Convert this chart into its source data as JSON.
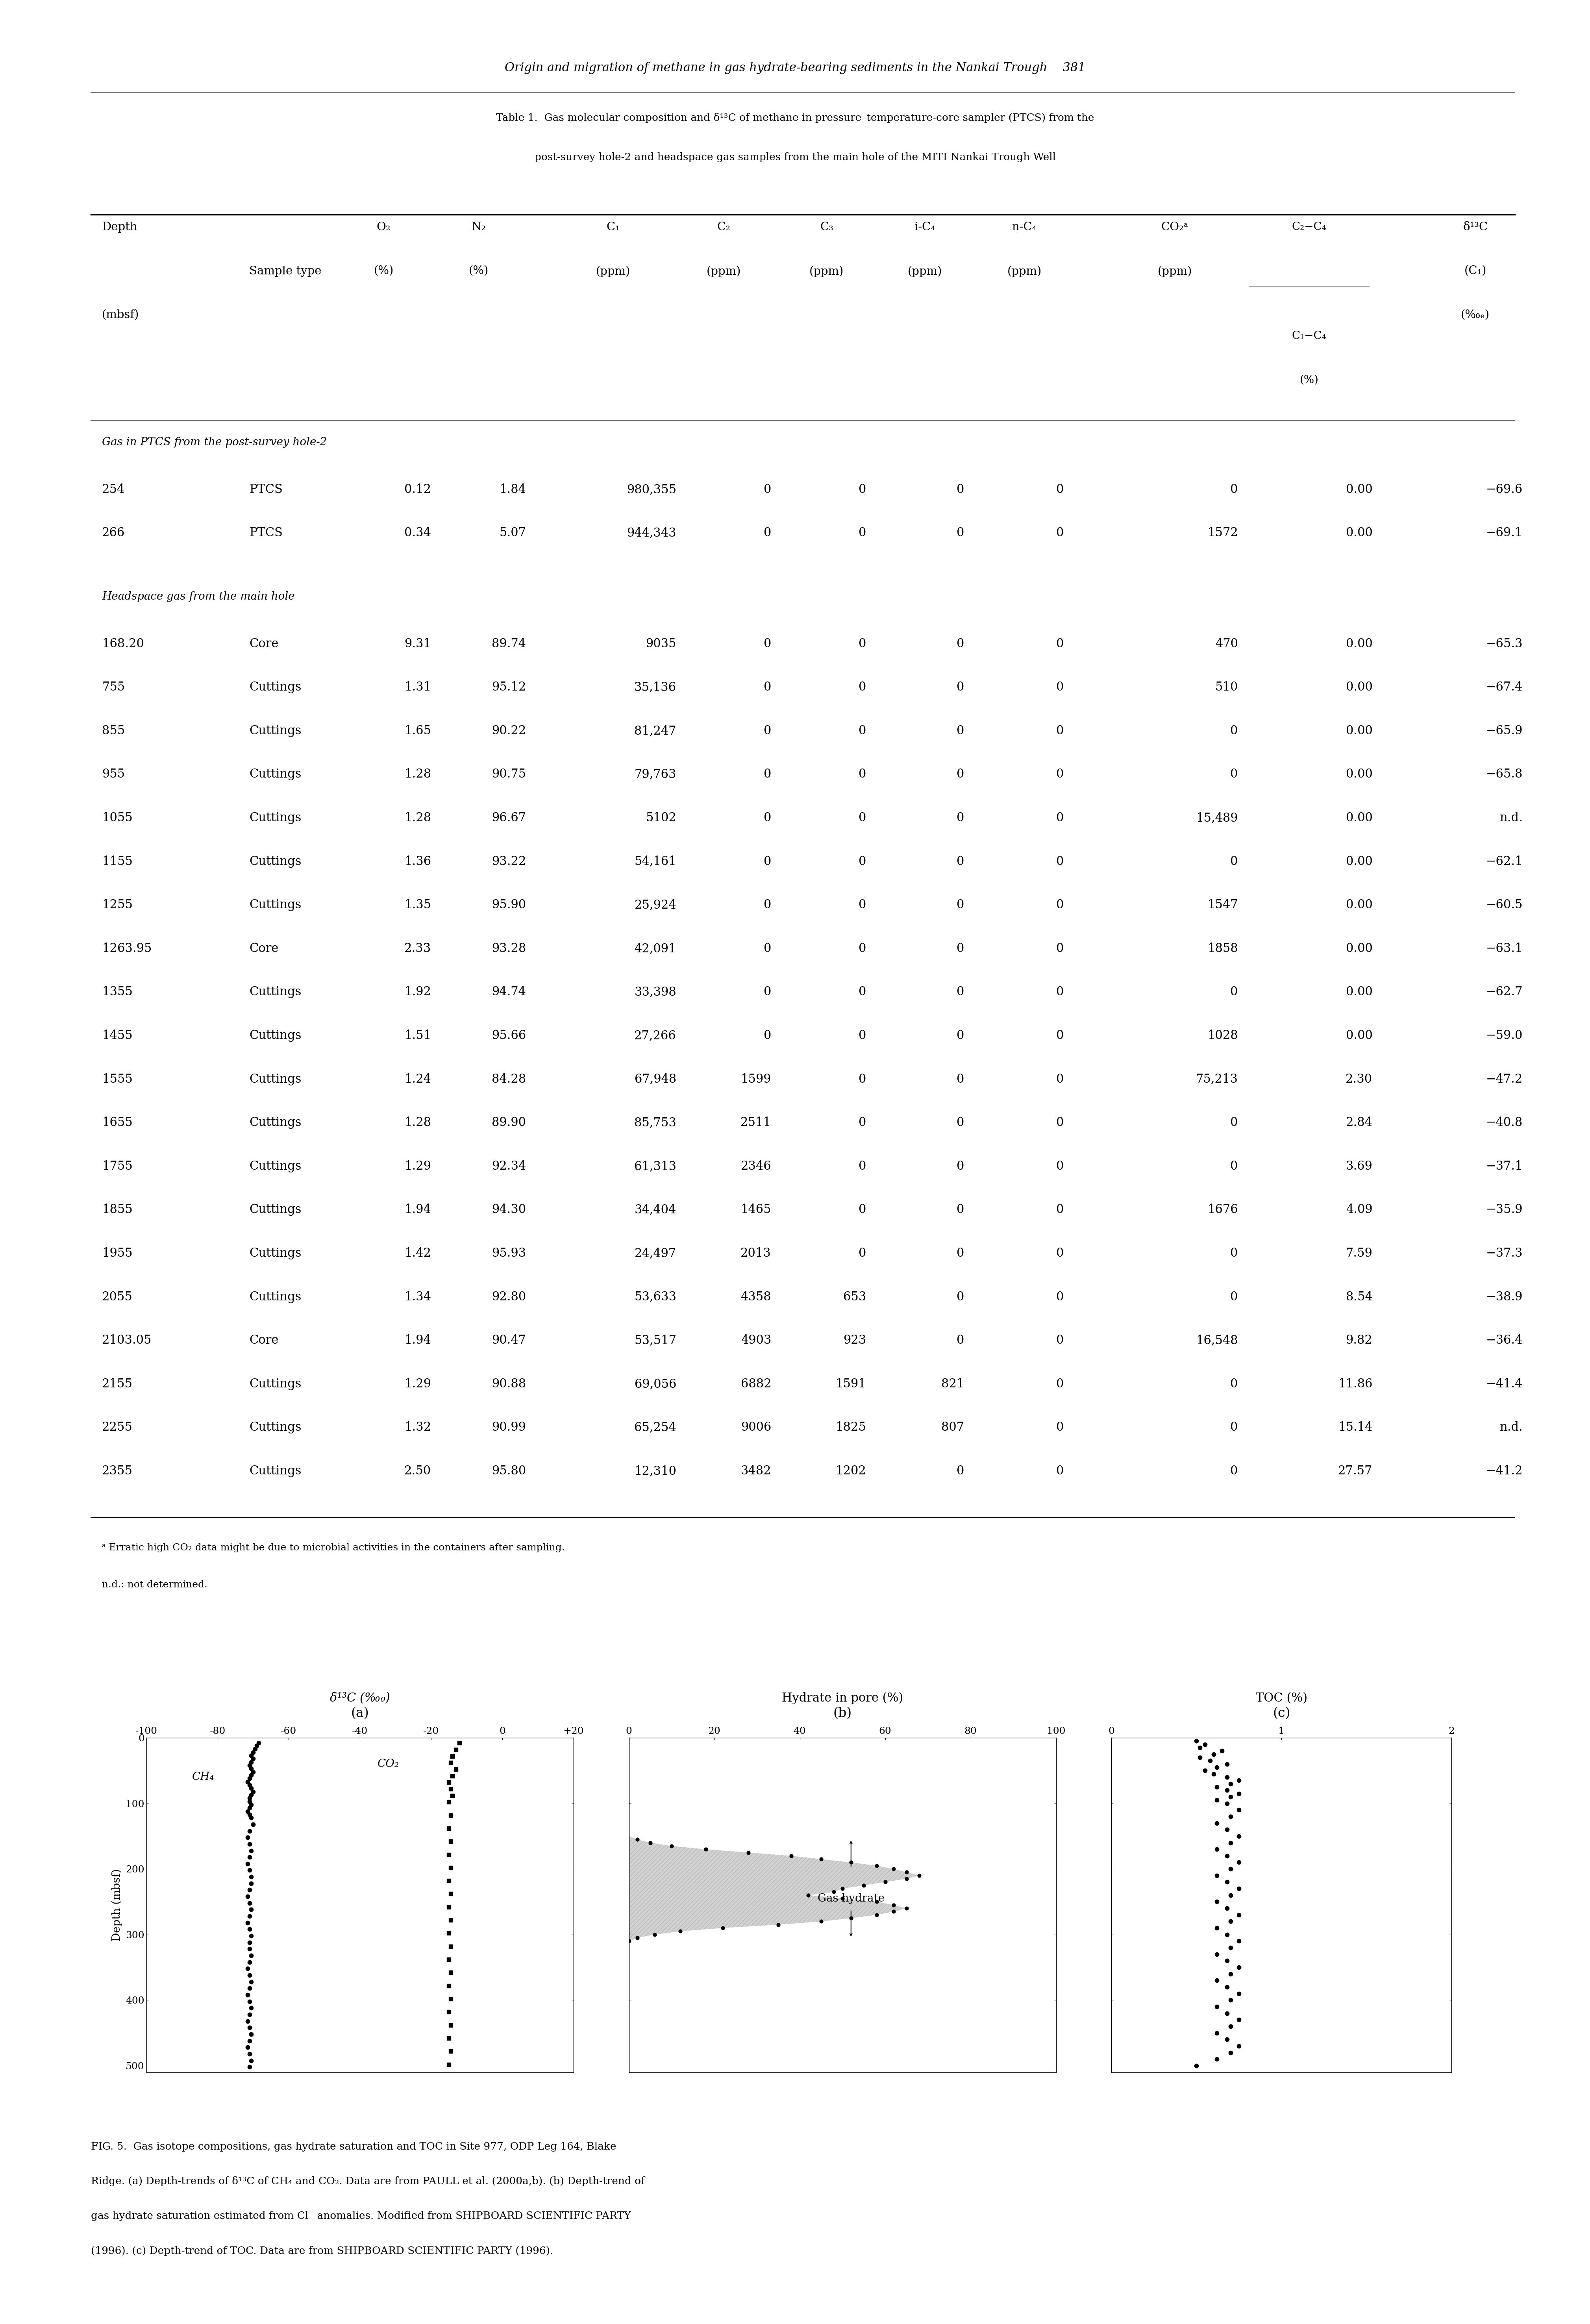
{
  "page_header": "Origin and migration of methane in gas hydrate-bearing sediments in the Nankai Trough",
  "page_number": "381",
  "table_title_line1": "Table 1.  Gas molecular composition and δ¹³C of methane in pressure–temperature-core sampler (PTCS) from the",
  "table_title_line2": "post-survey hole-2 and headspace gas samples from the main hole of the MITI Nankai Trough Well",
  "section1_label": "Gas in PTCS from the post-survey hole-2",
  "section2_label": "Headspace gas from the main hole",
  "rows_ptcs": [
    [
      "254",
      "PTCS",
      "0.12",
      "1.84",
      "980,355",
      "0",
      "0",
      "0",
      "0",
      "0",
      "0.00",
      "−69.6"
    ],
    [
      "266",
      "PTCS",
      "0.34",
      "5.07",
      "944,343",
      "0",
      "0",
      "0",
      "0",
      "1572",
      "0.00",
      "−69.1"
    ]
  ],
  "rows_headspace": [
    [
      "168.20",
      "Core",
      "9.31",
      "89.74",
      "9035",
      "0",
      "0",
      "0",
      "0",
      "470",
      "0.00",
      "−65.3"
    ],
    [
      "755",
      "Cuttings",
      "1.31",
      "95.12",
      "35,136",
      "0",
      "0",
      "0",
      "0",
      "510",
      "0.00",
      "−67.4"
    ],
    [
      "855",
      "Cuttings",
      "1.65",
      "90.22",
      "81,247",
      "0",
      "0",
      "0",
      "0",
      "0",
      "0.00",
      "−65.9"
    ],
    [
      "955",
      "Cuttings",
      "1.28",
      "90.75",
      "79,763",
      "0",
      "0",
      "0",
      "0",
      "0",
      "0.00",
      "−65.8"
    ],
    [
      "1055",
      "Cuttings",
      "1.28",
      "96.67",
      "5102",
      "0",
      "0",
      "0",
      "0",
      "15,489",
      "0.00",
      "n.d."
    ],
    [
      "1155",
      "Cuttings",
      "1.36",
      "93.22",
      "54,161",
      "0",
      "0",
      "0",
      "0",
      "0",
      "0.00",
      "−62.1"
    ],
    [
      "1255",
      "Cuttings",
      "1.35",
      "95.90",
      "25,924",
      "0",
      "0",
      "0",
      "0",
      "1547",
      "0.00",
      "−60.5"
    ],
    [
      "1263.95",
      "Core",
      "2.33",
      "93.28",
      "42,091",
      "0",
      "0",
      "0",
      "0",
      "1858",
      "0.00",
      "−63.1"
    ],
    [
      "1355",
      "Cuttings",
      "1.92",
      "94.74",
      "33,398",
      "0",
      "0",
      "0",
      "0",
      "0",
      "0.00",
      "−62.7"
    ],
    [
      "1455",
      "Cuttings",
      "1.51",
      "95.66",
      "27,266",
      "0",
      "0",
      "0",
      "0",
      "1028",
      "0.00",
      "−59.0"
    ],
    [
      "1555",
      "Cuttings",
      "1.24",
      "84.28",
      "67,948",
      "1599",
      "0",
      "0",
      "0",
      "75,213",
      "2.30",
      "−47.2"
    ],
    [
      "1655",
      "Cuttings",
      "1.28",
      "89.90",
      "85,753",
      "2511",
      "0",
      "0",
      "0",
      "0",
      "2.84",
      "−40.8"
    ],
    [
      "1755",
      "Cuttings",
      "1.29",
      "92.34",
      "61,313",
      "2346",
      "0",
      "0",
      "0",
      "0",
      "3.69",
      "−37.1"
    ],
    [
      "1855",
      "Cuttings",
      "1.94",
      "94.30",
      "34,404",
      "1465",
      "0",
      "0",
      "0",
      "1676",
      "4.09",
      "−35.9"
    ],
    [
      "1955",
      "Cuttings",
      "1.42",
      "95.93",
      "24,497",
      "2013",
      "0",
      "0",
      "0",
      "0",
      "7.59",
      "−37.3"
    ],
    [
      "2055",
      "Cuttings",
      "1.34",
      "92.80",
      "53,633",
      "4358",
      "653",
      "0",
      "0",
      "0",
      "8.54",
      "−38.9"
    ],
    [
      "2103.05",
      "Core",
      "1.94",
      "90.47",
      "53,517",
      "4903",
      "923",
      "0",
      "0",
      "16,548",
      "9.82",
      "−36.4"
    ],
    [
      "2155",
      "Cuttings",
      "1.29",
      "90.88",
      "69,056",
      "6882",
      "1591",
      "821",
      "0",
      "0",
      "11.86",
      "−41.4"
    ],
    [
      "2255",
      "Cuttings",
      "1.32",
      "90.99",
      "65,254",
      "9006",
      "1825",
      "807",
      "0",
      "0",
      "15.14",
      "n.d."
    ],
    [
      "2355",
      "Cuttings",
      "2.50",
      "95.80",
      "12,310",
      "3482",
      "1202",
      "0",
      "0",
      "0",
      "27.57",
      "−41.2"
    ]
  ],
  "footnote1": "ᵃ Erratic high CO₂ data might be due to microbial activities in the containers after sampling.",
  "footnote2": "n.d.: not determined.",
  "fig_caption_line1": "FIG. 5.  Gas isotope compositions, gas hydrate saturation and TOC in Site 977, ODP Leg 164, Blake",
  "fig_caption_line2": "Ridge. (a) Depth-trends of δ¹³C of CH₄ and CO₂. Data are from PAULL et al. (2000a,b). (b) Depth-trend of",
  "fig_caption_line3": "gas hydrate saturation estimated from Cl⁻ anomalies. Modified from SHIPBOARD SCIENTIFIC PARTY",
  "fig_caption_line4": "(1996). (c) Depth-trend of TOC. Data are from SHIPBOARD SCIENTIFIC PARTY (1996).",
  "background_color": "#ffffff"
}
